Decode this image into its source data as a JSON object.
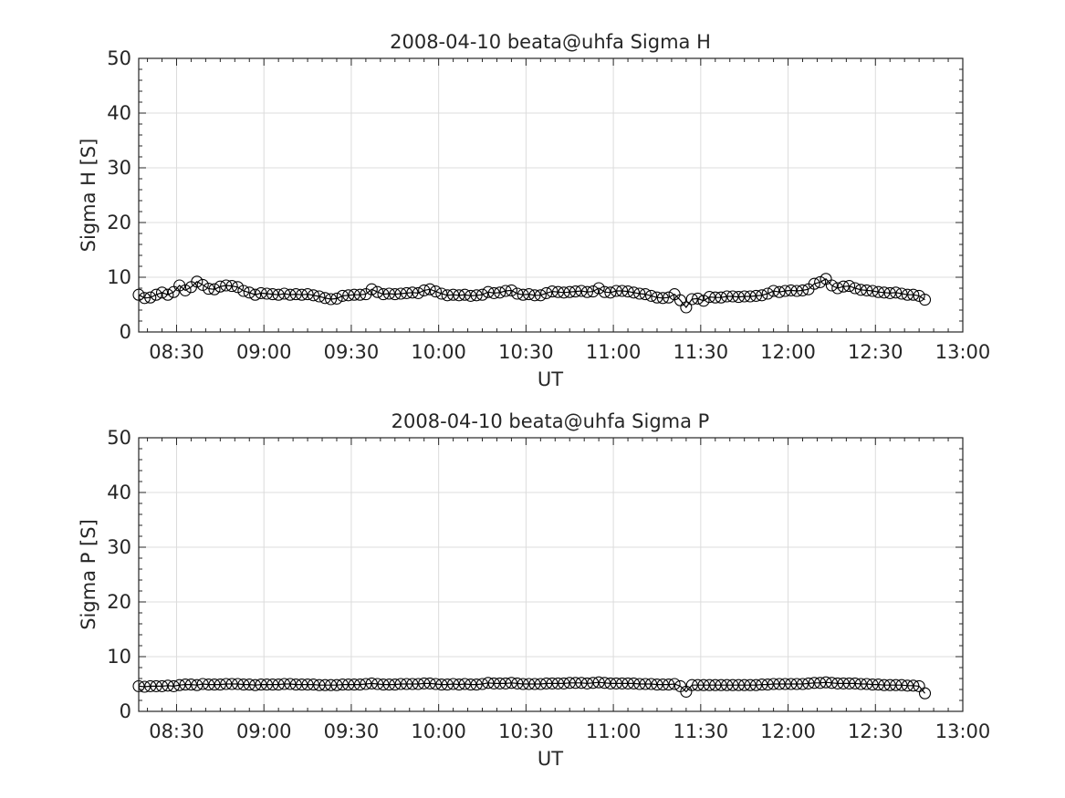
{
  "chart_data": [
    {
      "type": "line",
      "title": "2008-04-10  beata@uhfa Sigma H",
      "xlabel": "UT",
      "ylabel": "Sigma H [S]",
      "ylim": [
        0,
        50
      ],
      "xlim": [
        "08:17",
        "13:00"
      ],
      "yticks": [
        0,
        10,
        20,
        30,
        40,
        50
      ],
      "xticks": [
        "08:30",
        "09:00",
        "09:30",
        "10:00",
        "10:30",
        "11:00",
        "11:30",
        "12:00",
        "12:30",
        "13:00"
      ],
      "grid": true,
      "marker": "open-circle",
      "series_color": "#000000",
      "x_start": "08:17",
      "x_step_minutes": 2,
      "values": [
        6.8,
        6.2,
        6.3,
        6.8,
        7.2,
        6.8,
        7.3,
        8.5,
        7.6,
        8.2,
        9.2,
        8.6,
        7.9,
        7.8,
        8.3,
        8.5,
        8.4,
        8.2,
        7.5,
        7.2,
        6.8,
        7.1,
        7.0,
        6.9,
        6.8,
        7.0,
        6.8,
        6.9,
        6.8,
        6.9,
        6.7,
        6.5,
        6.2,
        6.0,
        6.1,
        6.6,
        6.7,
        6.8,
        6.8,
        6.9,
        7.8,
        7.3,
        6.9,
        7.0,
        6.9,
        7.0,
        7.1,
        7.2,
        7.1,
        7.6,
        7.8,
        7.4,
        7.0,
        6.7,
        6.8,
        6.7,
        6.8,
        6.6,
        6.7,
        6.8,
        7.3,
        7.1,
        7.2,
        7.5,
        7.6,
        7.0,
        6.8,
        6.9,
        6.7,
        6.7,
        7.1,
        7.4,
        7.3,
        7.2,
        7.3,
        7.4,
        7.5,
        7.3,
        7.4,
        8.0,
        7.3,
        7.2,
        7.5,
        7.5,
        7.4,
        7.2,
        7.0,
        6.9,
        6.6,
        6.3,
        6.2,
        6.3,
        6.9,
        5.8,
        4.5,
        6.0,
        6.1,
        5.7,
        6.4,
        6.3,
        6.3,
        6.5,
        6.5,
        6.4,
        6.5,
        6.5,
        6.6,
        6.7,
        7.0,
        7.5,
        7.3,
        7.5,
        7.6,
        7.5,
        7.6,
        7.8,
        8.8,
        9.1,
        9.7,
        8.5,
        8.0,
        8.3,
        8.4,
        8.0,
        7.7,
        7.6,
        7.5,
        7.3,
        7.2,
        7.1,
        7.2,
        7.0,
        6.8,
        6.8,
        6.6,
        5.9
      ]
    },
    {
      "type": "line",
      "title": "2008-04-10  beata@uhfa Sigma P",
      "xlabel": "UT",
      "ylabel": "Sigma P [S]",
      "ylim": [
        0,
        50
      ],
      "xlim": [
        "08:17",
        "13:00"
      ],
      "yticks": [
        0,
        10,
        20,
        30,
        40,
        50
      ],
      "xticks": [
        "08:30",
        "09:00",
        "09:30",
        "10:00",
        "10:30",
        "11:00",
        "11:30",
        "12:00",
        "12:30",
        "13:00"
      ],
      "grid": true,
      "marker": "open-circle",
      "series_color": "#000000",
      "x_start": "08:17",
      "x_step_minutes": 2,
      "values": [
        4.6,
        4.5,
        4.6,
        4.6,
        4.6,
        4.7,
        4.6,
        4.8,
        4.9,
        4.9,
        4.8,
        5.0,
        4.9,
        4.9,
        4.9,
        5.0,
        5.0,
        5.0,
        4.9,
        4.9,
        4.8,
        4.9,
        4.9,
        4.9,
        4.9,
        5.0,
        5.0,
        4.9,
        4.9,
        4.9,
        4.9,
        4.8,
        4.8,
        4.8,
        4.8,
        4.9,
        4.9,
        4.9,
        4.9,
        5.0,
        5.1,
        5.0,
        4.9,
        4.9,
        4.9,
        5.0,
        5.0,
        5.0,
        5.0,
        5.1,
        5.1,
        5.0,
        4.9,
        4.9,
        5.0,
        4.9,
        5.0,
        4.9,
        4.9,
        5.0,
        5.2,
        5.1,
        5.1,
        5.1,
        5.2,
        5.1,
        5.0,
        5.0,
        5.0,
        5.0,
        5.1,
        5.1,
        5.1,
        5.1,
        5.2,
        5.2,
        5.2,
        5.1,
        5.2,
        5.3,
        5.2,
        5.1,
        5.1,
        5.1,
        5.1,
        5.1,
        5.0,
        5.0,
        5.0,
        4.9,
        4.9,
        4.9,
        5.0,
        4.6,
        3.6,
        4.8,
        4.8,
        4.8,
        4.8,
        4.8,
        4.8,
        4.8,
        4.8,
        4.8,
        4.8,
        4.8,
        4.8,
        4.9,
        4.9,
        5.0,
        5.0,
        5.0,
        5.0,
        5.0,
        5.0,
        5.1,
        5.2,
        5.2,
        5.3,
        5.2,
        5.1,
        5.1,
        5.1,
        5.1,
        5.0,
        5.0,
        4.9,
        4.9,
        4.8,
        4.8,
        4.8,
        4.8,
        4.7,
        4.7,
        4.6,
        3.3
      ]
    }
  ]
}
